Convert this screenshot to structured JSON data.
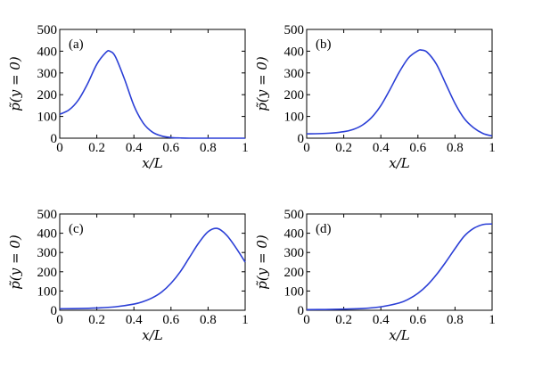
{
  "chart_data": [
    {
      "type": "line",
      "panel_label": "(a)",
      "xlabel": "x/L",
      "ylabel": "p̃(y = 0)",
      "xlim": [
        0,
        1
      ],
      "ylim": [
        0,
        500
      ],
      "xticks": [
        "0",
        "0.2",
        "0.4",
        "0.6",
        "0.8",
        "1"
      ],
      "yticks": [
        "0",
        "100",
        "200",
        "300",
        "400",
        "500"
      ],
      "series": [
        {
          "color": "#2b3fd6",
          "x": [
            0,
            0.05,
            0.1,
            0.15,
            0.2,
            0.25,
            0.27,
            0.3,
            0.35,
            0.4,
            0.45,
            0.5,
            0.55,
            0.6,
            0.65,
            0.7,
            0.8,
            0.9,
            1.0
          ],
          "y": [
            110,
            130,
            175,
            250,
            340,
            395,
            400,
            375,
            270,
            150,
            70,
            28,
            10,
            3,
            1,
            0,
            0,
            0,
            0
          ]
        }
      ]
    },
    {
      "type": "line",
      "panel_label": "(b)",
      "xlabel": "x/L",
      "ylabel": "p̃(y = 0)",
      "xlim": [
        0,
        1
      ],
      "ylim": [
        0,
        500
      ],
      "xticks": [
        "0",
        "0.2",
        "0.4",
        "0.6",
        "0.8",
        "1"
      ],
      "yticks": [
        "0",
        "100",
        "200",
        "300",
        "400",
        "500"
      ],
      "series": [
        {
          "color": "#2b3fd6",
          "x": [
            0,
            0.1,
            0.2,
            0.25,
            0.3,
            0.35,
            0.4,
            0.45,
            0.5,
            0.55,
            0.6,
            0.62,
            0.65,
            0.7,
            0.75,
            0.8,
            0.85,
            0.9,
            0.95,
            1.0
          ],
          "y": [
            20,
            22,
            30,
            40,
            60,
            95,
            150,
            225,
            305,
            370,
            402,
            405,
            395,
            340,
            250,
            160,
            90,
            48,
            22,
            10
          ]
        }
      ]
    },
    {
      "type": "line",
      "panel_label": "(c)",
      "xlabel": "x/L",
      "ylabel": "p̃(y = 0)",
      "xlim": [
        0,
        1
      ],
      "ylim": [
        0,
        500
      ],
      "xticks": [
        "0",
        "0.2",
        "0.4",
        "0.6",
        "0.8",
        "1"
      ],
      "yticks": [
        "0",
        "100",
        "200",
        "300",
        "400",
        "500"
      ],
      "series": [
        {
          "color": "#2b3fd6",
          "x": [
            0,
            0.1,
            0.2,
            0.3,
            0.4,
            0.45,
            0.5,
            0.55,
            0.6,
            0.65,
            0.7,
            0.75,
            0.8,
            0.85,
            0.9,
            0.95,
            1.0
          ],
          "y": [
            8,
            9,
            12,
            18,
            32,
            45,
            65,
            95,
            140,
            200,
            275,
            350,
            408,
            425,
            390,
            325,
            250
          ]
        }
      ]
    },
    {
      "type": "line",
      "panel_label": "(d)",
      "xlabel": "x/L",
      "ylabel": "p̃(y = 0)",
      "xlim": [
        0,
        1
      ],
      "ylim": [
        0,
        500
      ],
      "xticks": [
        "0",
        "0.2",
        "0.4",
        "0.6",
        "0.8",
        "1"
      ],
      "yticks": [
        "0",
        "100",
        "200",
        "300",
        "400",
        "500"
      ],
      "series": [
        {
          "color": "#2b3fd6",
          "x": [
            0,
            0.1,
            0.2,
            0.3,
            0.4,
            0.5,
            0.55,
            0.6,
            0.65,
            0.7,
            0.75,
            0.8,
            0.85,
            0.9,
            0.95,
            1.0
          ],
          "y": [
            3,
            4,
            6,
            9,
            18,
            38,
            58,
            88,
            130,
            185,
            250,
            320,
            385,
            425,
            445,
            448
          ]
        }
      ]
    }
  ]
}
